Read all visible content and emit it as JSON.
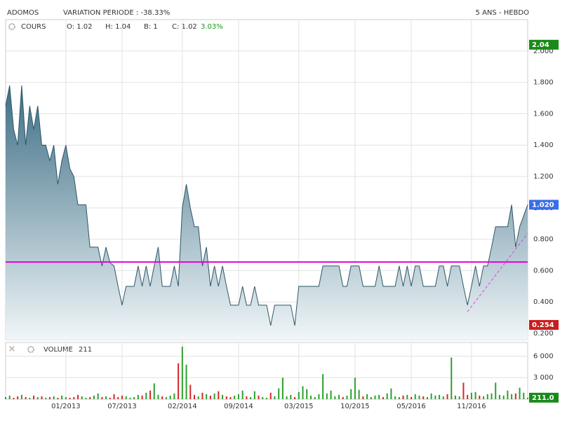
{
  "chart_data": {
    "type": "line",
    "title": "ADOMOS",
    "subtitle": "VARIATION PERIODE : -38.33%",
    "period": "5 ANS - HEBDO",
    "series_label": "COURS",
    "quote": [
      "O: 1.02",
      "H: 1.04",
      "B: 1",
      "C: 1.02"
    ],
    "change": "3.03%",
    "change_color": "#1a9a1a",
    "categories": [
      null,
      null,
      null,
      null,
      null,
      null,
      null,
      null,
      null,
      null,
      null,
      null,
      null,
      null,
      null,
      "01/2013",
      null,
      null,
      null,
      null,
      null,
      null,
      null,
      null,
      null,
      null,
      null,
      null,
      null,
      "07/2013",
      null,
      null,
      null,
      null,
      null,
      null,
      null,
      null,
      null,
      null,
      null,
      null,
      null,
      null,
      "02/2014",
      null,
      null,
      null,
      null,
      null,
      null,
      null,
      null,
      null,
      null,
      null,
      null,
      null,
      "09/2014",
      null,
      null,
      null,
      null,
      null,
      null,
      null,
      null,
      null,
      null,
      null,
      null,
      null,
      null,
      "03/2015",
      null,
      null,
      null,
      null,
      null,
      null,
      null,
      null,
      null,
      null,
      null,
      null,
      null,
      "10/2015",
      null,
      null,
      null,
      null,
      null,
      null,
      null,
      null,
      null,
      null,
      null,
      null,
      null,
      "05/2016",
      null,
      null,
      null,
      null,
      null,
      null,
      null,
      null,
      null,
      null,
      null,
      null,
      null,
      null,
      "11/2016",
      null,
      null,
      null,
      null,
      null,
      null,
      null,
      null,
      null,
      null,
      null,
      null,
      null,
      null
    ],
    "series": [
      {
        "name": "COURS",
        "color": "#2d5568",
        "values": [
          1.65,
          1.78,
          1.5,
          1.4,
          1.78,
          1.4,
          1.65,
          1.5,
          1.65,
          1.4,
          1.4,
          1.3,
          1.4,
          1.15,
          1.3,
          1.4,
          1.25,
          1.2,
          1.02,
          1.02,
          1.02,
          0.75,
          0.75,
          0.75,
          0.63,
          0.75,
          0.65,
          0.63,
          0.5,
          0.38,
          0.5,
          0.5,
          0.5,
          0.63,
          0.5,
          0.63,
          0.5,
          0.63,
          0.75,
          0.5,
          0.5,
          0.5,
          0.63,
          0.5,
          1.0,
          1.15,
          1.0,
          0.88,
          0.88,
          0.63,
          0.75,
          0.5,
          0.63,
          0.5,
          0.63,
          0.5,
          0.38,
          0.38,
          0.38,
          0.5,
          0.38,
          0.38,
          0.5,
          0.38,
          0.38,
          0.38,
          0.25,
          0.38,
          0.38,
          0.38,
          0.38,
          0.38,
          0.25,
          0.5,
          0.5,
          0.5,
          0.5,
          0.5,
          0.5,
          0.63,
          0.63,
          0.63,
          0.63,
          0.63,
          0.5,
          0.5,
          0.63,
          0.63,
          0.63,
          0.5,
          0.5,
          0.5,
          0.5,
          0.63,
          0.5,
          0.5,
          0.5,
          0.5,
          0.63,
          0.5,
          0.63,
          0.5,
          0.63,
          0.63,
          0.5,
          0.5,
          0.5,
          0.5,
          0.63,
          0.63,
          0.5,
          0.63,
          0.63,
          0.63,
          0.5,
          0.38,
          0.5,
          0.63,
          0.5,
          0.63,
          0.63,
          0.75,
          0.88,
          0.88,
          0.88,
          0.88,
          1.02,
          0.75,
          0.88,
          0.95,
          1.02
        ]
      }
    ],
    "ylim": [
      0.16,
      2.2
    ],
    "yticks": [
      {
        "value": 2.0,
        "label": "2.000"
      },
      {
        "value": 1.8,
        "label": "1.800"
      },
      {
        "value": 1.6,
        "label": "1.600"
      },
      {
        "value": 1.4,
        "label": "1.400"
      },
      {
        "value": 1.2,
        "label": "1.200"
      },
      {
        "value": 1.0,
        "label": "1.000"
      },
      {
        "value": 0.8,
        "label": "0.800"
      },
      {
        "value": 0.6,
        "label": "0.600"
      },
      {
        "value": 0.4,
        "label": "0.400"
      },
      {
        "value": 0.2,
        "label": "0.200"
      }
    ],
    "grid": true,
    "reference_line": {
      "value": 0.655,
      "color": "#e000e0"
    },
    "trendline": {
      "from": 0.338,
      "to": 0.837,
      "color": "#e040e0"
    },
    "price_markers": [
      {
        "value": 2.04,
        "label": "2.04",
        "color": "#1a8a1a"
      },
      {
        "value": 1.02,
        "label": "1.020",
        "color": "#3a6ee8"
      },
      {
        "value": 0.254,
        "label": "0.254",
        "color": "#c81e1e"
      }
    ],
    "volume": {
      "title": "VOLUME",
      "up_color": "#2ca02c",
      "down_color": "#d62728",
      "values": [
        300,
        500,
        200,
        400,
        600,
        300,
        200,
        500,
        300,
        400,
        200,
        300,
        400,
        200,
        500,
        300,
        200,
        300,
        600,
        400,
        200,
        300,
        500,
        800,
        300,
        400,
        200,
        700,
        300,
        500,
        400,
        200,
        300,
        600,
        500,
        900,
        1200,
        2200,
        600,
        400,
        300,
        500,
        800,
        5000,
        7300,
        4800,
        2000,
        600,
        400,
        900,
        700,
        500,
        800,
        1100,
        600,
        400,
        300,
        500,
        700,
        1200,
        400,
        300,
        1100,
        500,
        300,
        200,
        900,
        400,
        1500,
        3000,
        400,
        600,
        300,
        1000,
        1800,
        1400,
        500,
        300,
        700,
        3500,
        800,
        1200,
        400,
        600,
        300,
        500,
        1400,
        3000,
        1300,
        400,
        700,
        300,
        500,
        600,
        300,
        800,
        1500,
        400,
        300,
        500,
        600,
        300,
        700,
        500,
        400,
        300,
        800,
        500,
        600,
        400,
        700,
        5800,
        500,
        400,
        2300,
        600,
        900,
        1000,
        500,
        400,
        700,
        800,
        2300,
        600,
        500,
        1200,
        700,
        800,
        1600,
        900,
        211
      ],
      "last_label": "211.0",
      "last_color": "#1a8a1a",
      "ylim": [
        0,
        7900
      ],
      "yticks": [
        {
          "value": 6000,
          "label": "6 000"
        },
        {
          "value": 3000,
          "label": "3 000"
        }
      ]
    }
  }
}
